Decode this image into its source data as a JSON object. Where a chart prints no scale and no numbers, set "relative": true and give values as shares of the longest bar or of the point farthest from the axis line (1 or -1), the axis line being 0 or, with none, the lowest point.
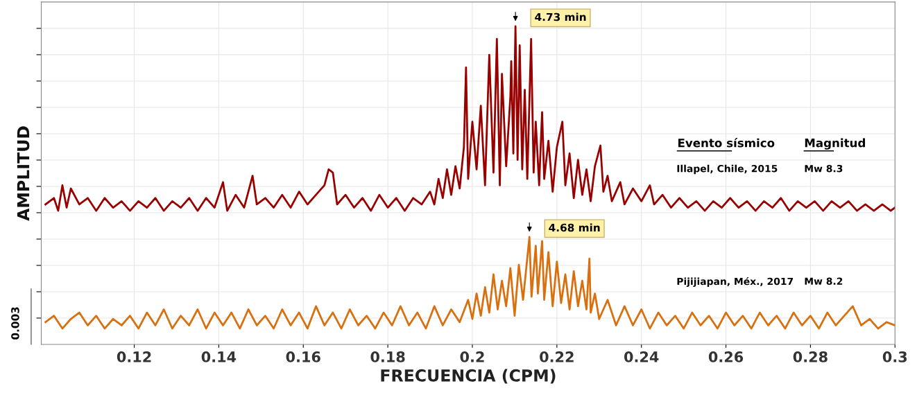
{
  "chart_data": {
    "type": "line",
    "relative": true,
    "xlabel": "FRECUENCIA (CPM)",
    "ylabel": "AMPLITUD",
    "xlim": [
      0.098,
      0.3
    ],
    "xticks": [
      0.12,
      0.14,
      0.16,
      0.18,
      0.2,
      0.22,
      0.24,
      0.26,
      0.28,
      0.3
    ],
    "grid": true,
    "legend": false,
    "series": [
      {
        "name": "Illapel, Chile, 2015",
        "color": "#990000",
        "x": [
          0.099,
          0.101,
          0.102,
          0.103,
          0.104,
          0.105,
          0.107,
          0.109,
          0.111,
          0.113,
          0.115,
          0.117,
          0.119,
          0.121,
          0.123,
          0.125,
          0.127,
          0.129,
          0.131,
          0.133,
          0.135,
          0.137,
          0.139,
          0.141,
          0.142,
          0.144,
          0.146,
          0.148,
          0.149,
          0.151,
          0.153,
          0.155,
          0.157,
          0.159,
          0.161,
          0.163,
          0.165,
          0.166,
          0.167,
          0.168,
          0.17,
          0.172,
          0.174,
          0.176,
          0.178,
          0.18,
          0.182,
          0.184,
          0.186,
          0.188,
          0.19,
          0.191,
          0.192,
          0.193,
          0.194,
          0.195,
          0.196,
          0.197,
          0.198,
          0.1985,
          0.199,
          0.2,
          0.201,
          0.202,
          0.203,
          0.204,
          0.205,
          0.2058,
          0.2065,
          0.207,
          0.208,
          0.209,
          0.2092,
          0.2097,
          0.2102,
          0.2107,
          0.2112,
          0.2118,
          0.2124,
          0.213,
          0.2139,
          0.2145,
          0.215,
          0.2158,
          0.2165,
          0.217,
          0.218,
          0.219,
          0.22,
          0.2213,
          0.222,
          0.223,
          0.224,
          0.225,
          0.226,
          0.227,
          0.228,
          0.229,
          0.2303,
          0.231,
          0.232,
          0.233,
          0.235,
          0.236,
          0.238,
          0.24,
          0.242,
          0.243,
          0.245,
          0.247,
          0.249,
          0.251,
          0.253,
          0.255,
          0.257,
          0.259,
          0.261,
          0.263,
          0.265,
          0.267,
          0.269,
          0.271,
          0.273,
          0.275,
          0.277,
          0.279,
          0.281,
          0.283,
          0.285,
          0.287,
          0.289,
          0.291,
          0.293,
          0.295,
          0.297,
          0.299,
          0.3
        ],
        "values": [
          0.44,
          0.46,
          0.42,
          0.5,
          0.43,
          0.49,
          0.44,
          0.46,
          0.42,
          0.46,
          0.43,
          0.45,
          0.42,
          0.45,
          0.43,
          0.46,
          0.42,
          0.45,
          0.43,
          0.46,
          0.42,
          0.46,
          0.43,
          0.51,
          0.42,
          0.47,
          0.43,
          0.53,
          0.44,
          0.46,
          0.43,
          0.47,
          0.43,
          0.48,
          0.44,
          0.47,
          0.5,
          0.55,
          0.54,
          0.44,
          0.47,
          0.43,
          0.46,
          0.42,
          0.47,
          0.43,
          0.46,
          0.42,
          0.46,
          0.44,
          0.48,
          0.44,
          0.52,
          0.46,
          0.55,
          0.47,
          0.56,
          0.49,
          0.62,
          0.87,
          0.52,
          0.7,
          0.55,
          0.75,
          0.5,
          0.91,
          0.54,
          0.96,
          0.5,
          0.85,
          0.56,
          0.78,
          0.89,
          0.6,
          1.0,
          0.58,
          0.94,
          0.55,
          0.8,
          0.52,
          0.96,
          0.54,
          0.7,
          0.5,
          0.73,
          0.52,
          0.64,
          0.48,
          0.62,
          0.7,
          0.5,
          0.6,
          0.46,
          0.58,
          0.47,
          0.55,
          0.45,
          0.56,
          0.625,
          0.48,
          0.53,
          0.45,
          0.51,
          0.44,
          0.49,
          0.45,
          0.5,
          0.44,
          0.47,
          0.43,
          0.46,
          0.43,
          0.45,
          0.42,
          0.45,
          0.43,
          0.46,
          0.43,
          0.45,
          0.42,
          0.45,
          0.43,
          0.46,
          0.42,
          0.45,
          0.43,
          0.45,
          0.42,
          0.45,
          0.43,
          0.45,
          0.42,
          0.44,
          0.42,
          0.44,
          0.42,
          0.43
        ]
      },
      {
        "name": "Pijijiapan, Méx., 2017",
        "color": "#d9700f",
        "x": [
          0.099,
          0.101,
          0.103,
          0.105,
          0.107,
          0.109,
          0.111,
          0.113,
          0.115,
          0.117,
          0.119,
          0.121,
          0.123,
          0.125,
          0.127,
          0.129,
          0.131,
          0.133,
          0.135,
          0.137,
          0.139,
          0.141,
          0.143,
          0.145,
          0.147,
          0.149,
          0.151,
          0.153,
          0.155,
          0.157,
          0.159,
          0.161,
          0.163,
          0.165,
          0.167,
          0.169,
          0.171,
          0.173,
          0.175,
          0.177,
          0.179,
          0.181,
          0.183,
          0.185,
          0.187,
          0.189,
          0.191,
          0.193,
          0.195,
          0.197,
          0.199,
          0.2,
          0.201,
          0.202,
          0.203,
          0.204,
          0.205,
          0.206,
          0.207,
          0.208,
          0.209,
          0.21,
          0.211,
          0.212,
          0.2135,
          0.214,
          0.215,
          0.2155,
          0.2165,
          0.217,
          0.218,
          0.219,
          0.22,
          0.221,
          0.222,
          0.223,
          0.224,
          0.225,
          0.226,
          0.227,
          0.2277,
          0.228,
          0.229,
          0.23,
          0.232,
          0.234,
          0.236,
          0.238,
          0.24,
          0.242,
          0.244,
          0.246,
          0.248,
          0.25,
          0.252,
          0.254,
          0.256,
          0.258,
          0.26,
          0.262,
          0.264,
          0.266,
          0.268,
          0.27,
          0.272,
          0.274,
          0.276,
          0.278,
          0.28,
          0.282,
          0.284,
          0.286,
          0.288,
          0.29,
          0.292,
          0.294,
          0.296,
          0.298,
          0.3
        ],
        "values": [
          0.07,
          0.09,
          0.05,
          0.08,
          0.1,
          0.06,
          0.09,
          0.05,
          0.08,
          0.06,
          0.09,
          0.05,
          0.1,
          0.06,
          0.11,
          0.05,
          0.09,
          0.06,
          0.11,
          0.05,
          0.1,
          0.06,
          0.1,
          0.05,
          0.11,
          0.06,
          0.09,
          0.05,
          0.11,
          0.06,
          0.1,
          0.05,
          0.12,
          0.06,
          0.1,
          0.05,
          0.11,
          0.06,
          0.09,
          0.05,
          0.1,
          0.06,
          0.12,
          0.06,
          0.1,
          0.05,
          0.12,
          0.06,
          0.11,
          0.07,
          0.14,
          0.08,
          0.16,
          0.09,
          0.18,
          0.1,
          0.22,
          0.11,
          0.2,
          0.12,
          0.24,
          0.09,
          0.25,
          0.14,
          0.338,
          0.15,
          0.31,
          0.16,
          0.325,
          0.14,
          0.29,
          0.12,
          0.26,
          0.13,
          0.22,
          0.11,
          0.23,
          0.12,
          0.2,
          0.11,
          0.27,
          0.1,
          0.16,
          0.08,
          0.14,
          0.06,
          0.12,
          0.06,
          0.11,
          0.05,
          0.1,
          0.06,
          0.09,
          0.05,
          0.1,
          0.06,
          0.09,
          0.05,
          0.1,
          0.06,
          0.09,
          0.05,
          0.1,
          0.06,
          0.09,
          0.05,
          0.1,
          0.06,
          0.09,
          0.05,
          0.1,
          0.06,
          0.09,
          0.12,
          0.06,
          0.08,
          0.05,
          0.07,
          0.06
        ]
      }
    ],
    "annotations": [
      {
        "text": "4.73 min",
        "x": 0.2102,
        "y": 1.0
      },
      {
        "text": "4.68 min",
        "x": 0.2135,
        "y": 0.338
      },
      "Evento sísmico",
      "Magnitud",
      "Mw 8.3",
      "Mw 8.2",
      "0.003"
    ]
  }
}
